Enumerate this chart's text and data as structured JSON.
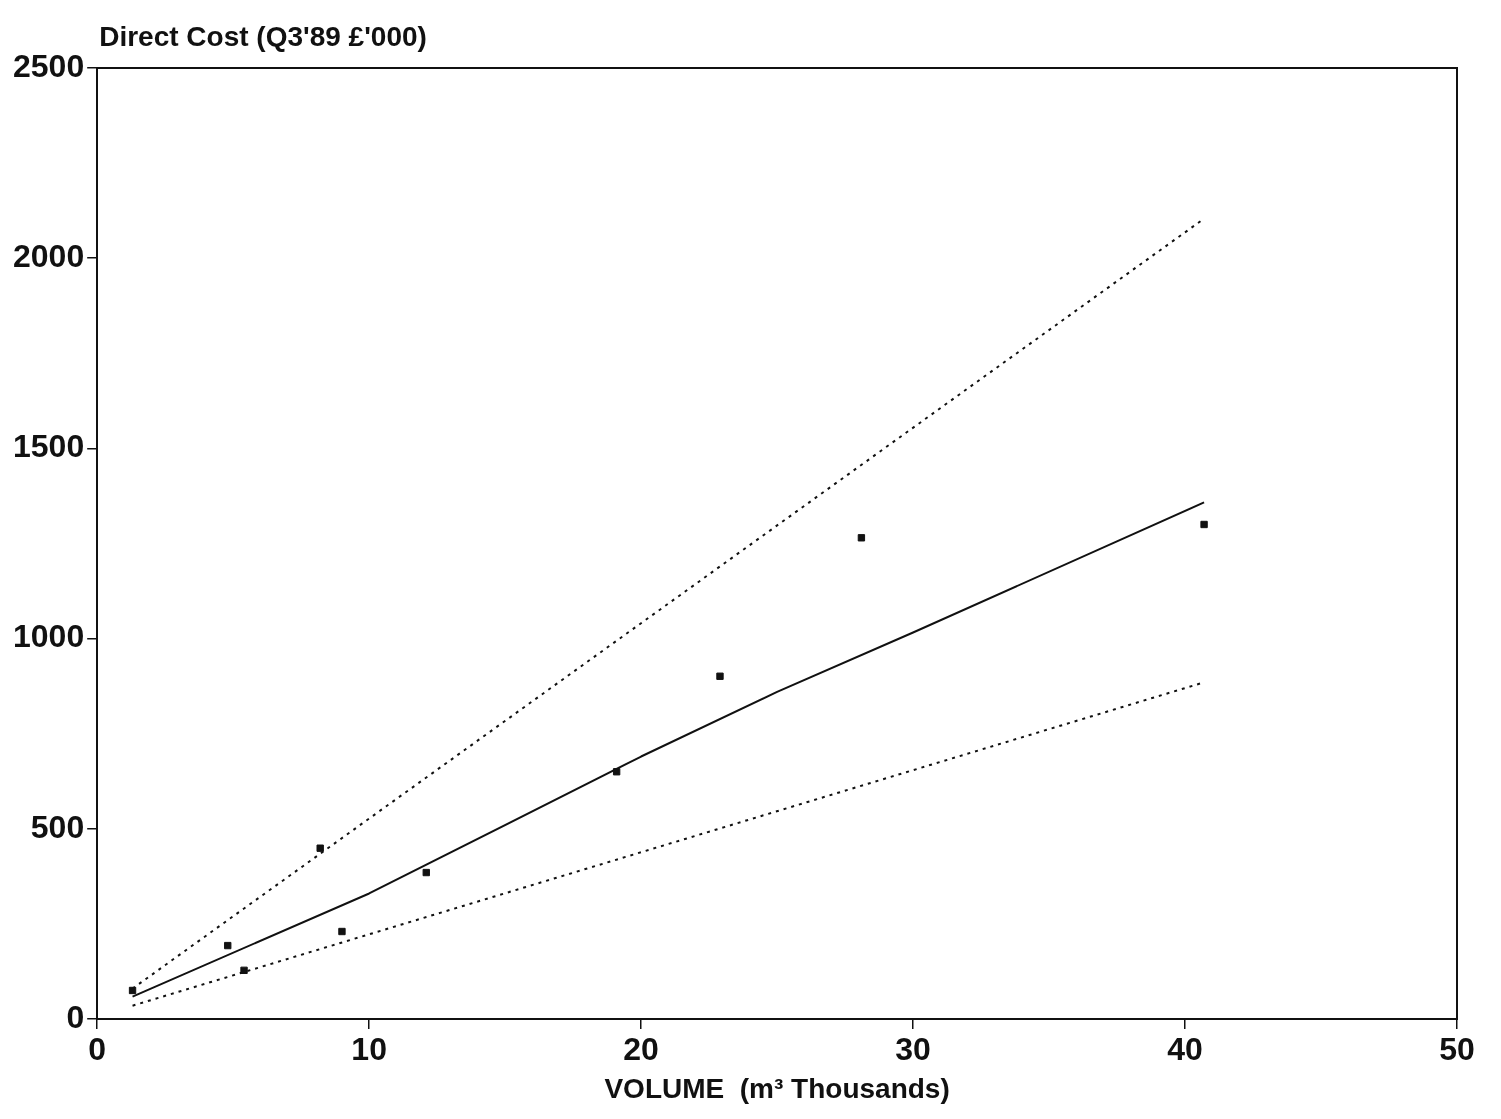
{
  "chart_data": {
    "type": "scatter",
    "ylabel": "Direct Cost (Q3'89 £'000)",
    "xlabel": "VOLUME  (m³ Thousands)",
    "xlim": [
      0,
      50
    ],
    "xticks": [
      0,
      10,
      20,
      30,
      40,
      50
    ],
    "ylim": [
      0,
      2500
    ],
    "yticks": [
      0,
      500,
      1000,
      1500,
      2000,
      2500
    ],
    "grid": false,
    "legend": false,
    "marker": "square",
    "series": [
      {
        "color": "#111111",
        "x": [
          1.3,
          4.8,
          5.4,
          8.2,
          9.0,
          12.1,
          19.1,
          22.9,
          28.1,
          40.7
        ],
        "values": [
          75,
          193,
          128,
          449,
          230,
          385,
          650,
          901,
          1265,
          1300
        ]
      },
      {
        "type": "line",
        "color": "#111111",
        "marker": "none",
        "line_style": "solid",
        "x": [
          1.3,
          10,
          20,
          25,
          30,
          40.7
        ],
        "values": [
          59,
          330,
          690,
          860,
          1016,
          1358
        ]
      },
      {
        "type": "line",
        "color": "#111111",
        "marker": "none",
        "line_style": "dotted",
        "x": [
          1.3,
          40.7
        ],
        "values": [
          80,
          2104
        ]
      },
      {
        "type": "line",
        "color": "#111111",
        "marker": "none",
        "line_style": "dotted",
        "x": [
          1.3,
          40.7
        ],
        "values": [
          35,
          885
        ]
      }
    ]
  }
}
